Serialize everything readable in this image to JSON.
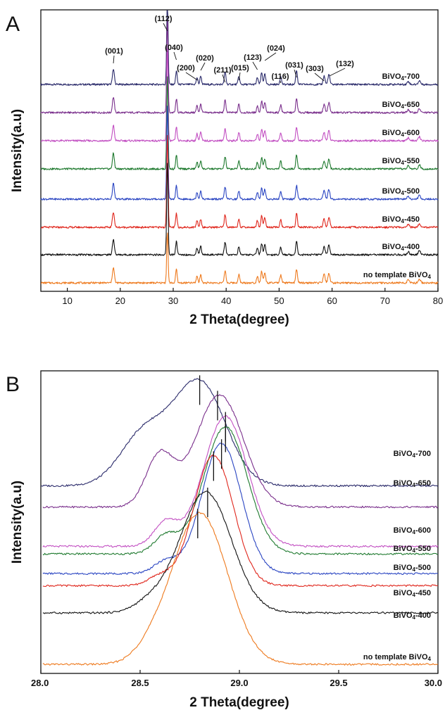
{
  "colors": {
    "BiVO4-700": "#2a2a6a",
    "BiVO4-650": "#7a2f8c",
    "BiVO4-600": "#c24fc2",
    "BiVO4-550": "#1f7a2f",
    "BiVO4-500": "#2a45c2",
    "BiVO4-450": "#e0261c",
    "BiVO4-400": "#111111",
    "no template BiVO4": "#ee7a1e"
  },
  "chart_data": [
    {
      "panel": "A",
      "type": "line",
      "xlabel": "2 Theta(degree)",
      "ylabel": "Intensity(a.u)",
      "xlim": [
        5,
        80
      ],
      "x_ticks": [
        10,
        20,
        30,
        40,
        50,
        60,
        70,
        80
      ],
      "grid": false,
      "series_order": [
        "BiVO4-700",
        "BiVO4-650",
        "BiVO4-600",
        "BiVO4-550",
        "BiVO4-500",
        "BiVO4-450",
        "BiVO4-400",
        "no template BiVO4"
      ],
      "series_labels": [
        "BiVO4-700",
        "BiVO4-650",
        "BiVO4-600",
        "BiVO4-550",
        "BiVO4-500",
        "BiVO4-450",
        "BiVO4-400",
        "no template BiVO4"
      ],
      "peaks": [
        {
          "pos": 18.7,
          "h": 1.0,
          "w": 0.18
        },
        {
          "pos": 28.9,
          "h": 6.0,
          "w": 0.13
        },
        {
          "pos": 30.6,
          "h": 0.9,
          "w": 0.14
        },
        {
          "pos": 34.5,
          "h": 0.45,
          "w": 0.15
        },
        {
          "pos": 35.2,
          "h": 0.55,
          "w": 0.15
        },
        {
          "pos": 39.8,
          "h": 0.8,
          "w": 0.16
        },
        {
          "pos": 42.4,
          "h": 0.55,
          "w": 0.15
        },
        {
          "pos": 45.9,
          "h": 0.45,
          "w": 0.15
        },
        {
          "pos": 46.7,
          "h": 0.75,
          "w": 0.16
        },
        {
          "pos": 47.3,
          "h": 0.65,
          "w": 0.16
        },
        {
          "pos": 50.3,
          "h": 0.5,
          "w": 0.16
        },
        {
          "pos": 53.3,
          "h": 0.9,
          "w": 0.16
        },
        {
          "pos": 58.5,
          "h": 0.55,
          "w": 0.18
        },
        {
          "pos": 59.4,
          "h": 0.65,
          "w": 0.18
        },
        {
          "pos": 74.4,
          "h": 0.2,
          "w": 0.2
        },
        {
          "pos": 76.5,
          "h": 0.25,
          "w": 0.2
        }
      ],
      "reflections": [
        {
          "label": "(001)",
          "x": 18.7
        },
        {
          "label": "(112)",
          "x": 28.9
        },
        {
          "label": "(040)",
          "x": 30.6
        },
        {
          "label": "(200)",
          "x": 34.6
        },
        {
          "label": "(020)",
          "x": 35.2
        },
        {
          "label": "(211)",
          "x": 39.8
        },
        {
          "label": "(015)",
          "x": 42.4
        },
        {
          "label": "(123)",
          "x": 45.9
        },
        {
          "label": "(024)",
          "x": 47.3
        },
        {
          "label": "(116)",
          "x": 50.3
        },
        {
          "label": "(031)",
          "x": 53.3
        },
        {
          "label": "(303)",
          "x": 58.5
        },
        {
          "label": "(132)",
          "x": 59.5
        }
      ]
    },
    {
      "panel": "B",
      "type": "line",
      "xlabel": "2 Theta(degree)",
      "ylabel": "Intensity(a.u)",
      "xlim": [
        28.0,
        30.0
      ],
      "x_ticks": [
        "28.0",
        "28.5",
        "29.0",
        "29.5",
        "30.0"
      ],
      "grid": false,
      "series": [
        {
          "name": "BiVO4-700",
          "peak_center": 28.8,
          "peak_marker": 28.8,
          "baseline": 0.62,
          "amp": 0.34,
          "sigma": 0.13,
          "shoulder": {
            "pos": 28.52,
            "amp": 0.17,
            "sigma": 0.12
          }
        },
        {
          "name": "BiVO4-650",
          "peak_center": 28.9,
          "peak_marker": 28.89,
          "baseline": 0.55,
          "amp": 0.37,
          "sigma": 0.12,
          "shoulder": {
            "pos": 28.6,
            "amp": 0.17,
            "sigma": 0.07
          }
        },
        {
          "name": "BiVO4-600",
          "peak_center": 28.93,
          "peak_marker": 28.93,
          "baseline": 0.42,
          "amp": 0.43,
          "sigma": 0.11,
          "shoulder": {
            "pos": 28.63,
            "amp": 0.08,
            "sigma": 0.06
          }
        },
        {
          "name": "BiVO4-550",
          "peak_center": 28.93,
          "peak_marker": 28.93,
          "baseline": 0.395,
          "amp": 0.42,
          "sigma": 0.11,
          "shoulder": {
            "pos": 28.63,
            "amp": 0.06,
            "sigma": 0.06
          }
        },
        {
          "name": "BiVO4-500",
          "peak_center": 28.91,
          "peak_marker": 28.91,
          "baseline": 0.33,
          "amp": 0.43,
          "sigma": 0.1,
          "shoulder": {
            "pos": 28.63,
            "amp": 0.04,
            "sigma": 0.06
          }
        },
        {
          "name": "BiVO4-450",
          "peak_center": 28.87,
          "peak_marker": 28.87,
          "baseline": 0.29,
          "amp": 0.43,
          "sigma": 0.1,
          "shoulder": {
            "pos": 28.6,
            "amp": 0.03,
            "sigma": 0.06
          }
        },
        {
          "name": "BiVO4-400",
          "peak_center": 28.83,
          "peak_marker": 28.84,
          "baseline": 0.2,
          "amp": 0.4,
          "sigma": 0.13,
          "shoulder": {
            "pos": 28.55,
            "amp": 0.03,
            "sigma": 0.08
          }
        },
        {
          "name": "no template BiVO4",
          "peak_center": 28.8,
          "peak_marker": 28.79,
          "baseline": 0.03,
          "amp": 0.5,
          "sigma": 0.14,
          "shoulder": {
            "pos": 28.55,
            "amp": 0.03,
            "sigma": 0.08
          }
        }
      ]
    }
  ]
}
